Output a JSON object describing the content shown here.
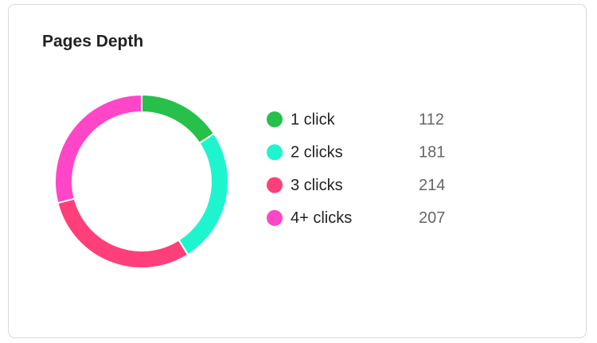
{
  "chart_data": {
    "type": "donut",
    "title": "Pages Depth",
    "categories": [
      "1 click",
      "2 clicks",
      "3 clicks",
      "4+ clicks"
    ],
    "values": [
      112,
      181,
      214,
      207
    ],
    "colors": [
      "#27c04a",
      "#1ef5cf",
      "#ff3f7a",
      "#ff46c8"
    ]
  }
}
